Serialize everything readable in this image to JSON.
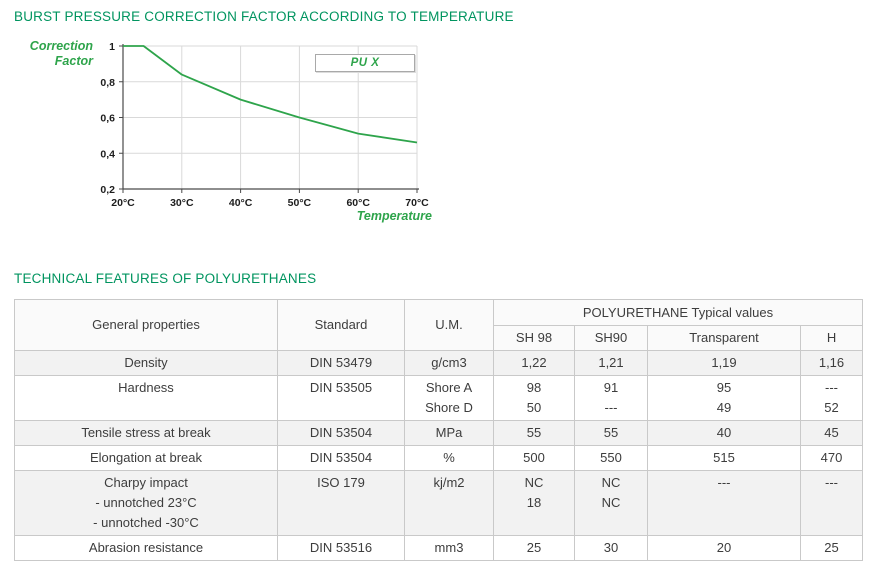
{
  "titles": {
    "chart_section": "BURST PRESSURE CORRECTION FACTOR ACCORDING TO TEMPERATURE",
    "table_section": "TECHNICAL FEATURES OF POLYURETHANES"
  },
  "colors": {
    "title_green": "#00945f",
    "chart_green": "#2ea44b",
    "grid": "#d9d9d9",
    "axis": "#4a4a4a",
    "table_border": "#c9c9c9",
    "table_text": "#3d3d3d",
    "row_shade": "#f2f2f2"
  },
  "chart_data": {
    "type": "line",
    "title": "",
    "ylabel": "Correction Factor",
    "xlabel": "Temperature",
    "legend_label": "PU X",
    "legend_position": "top-right",
    "grid": true,
    "xlim": [
      20,
      70
    ],
    "ylim": [
      0.2,
      1.0
    ],
    "x_ticks": [
      {
        "label": "20°C",
        "value": 20
      },
      {
        "label": "30°C",
        "value": 30
      },
      {
        "label": "40°C",
        "value": 40
      },
      {
        "label": "50°C",
        "value": 50
      },
      {
        "label": "60°C",
        "value": 60
      },
      {
        "label": "70°C",
        "value": 70
      }
    ],
    "y_ticks": [
      {
        "label": "1",
        "value": 1.0
      },
      {
        "label": "0,8",
        "value": 0.8
      },
      {
        "label": "0,6",
        "value": 0.6
      },
      {
        "label": "0,4",
        "value": 0.4
      },
      {
        "label": "0,2",
        "value": 0.2
      }
    ],
    "series": [
      {
        "name": "PU X",
        "points": [
          [
            20,
            1.0
          ],
          [
            23.5,
            1.0
          ],
          [
            30,
            0.84
          ],
          [
            40,
            0.7
          ],
          [
            50,
            0.6
          ],
          [
            60,
            0.51
          ],
          [
            70,
            0.46
          ]
        ]
      }
    ]
  },
  "table": {
    "columns": [
      "General properties",
      "Standard",
      "U.M."
    ],
    "group_header": "POLYURETHANE Typical values",
    "subcolumns": [
      "SH 98",
      "SH90",
      "Transparent",
      "H"
    ],
    "rows": [
      {
        "cells": [
          [
            "Density"
          ],
          [
            "DIN 53479"
          ],
          [
            "g/cm3"
          ],
          [
            "1,22"
          ],
          [
            "1,21"
          ],
          [
            "1,19"
          ],
          [
            "1,16"
          ]
        ]
      },
      {
        "cells": [
          [
            "Hardness"
          ],
          [
            "DIN 53505"
          ],
          [
            "Shore A",
            "Shore D"
          ],
          [
            "98",
            "50"
          ],
          [
            "91",
            "---"
          ],
          [
            "95",
            "49"
          ],
          [
            "---",
            "52"
          ]
        ]
      },
      {
        "cells": [
          [
            "Tensile stress at break"
          ],
          [
            "DIN 53504"
          ],
          [
            "MPa"
          ],
          [
            "55"
          ],
          [
            "55"
          ],
          [
            "40"
          ],
          [
            "45"
          ]
        ]
      },
      {
        "cells": [
          [
            "Elongation at break"
          ],
          [
            "DIN 53504"
          ],
          [
            "%"
          ],
          [
            "500"
          ],
          [
            "550"
          ],
          [
            "515"
          ],
          [
            "470"
          ]
        ]
      },
      {
        "cells": [
          [
            "Charpy impact",
            "- unnotched 23°C",
            "- unnotched -30°C"
          ],
          [
            "ISO 179"
          ],
          [
            "kj/m2"
          ],
          [
            "NC",
            "18"
          ],
          [
            "NC",
            "NC"
          ],
          [
            "---"
          ],
          [
            "---"
          ]
        ]
      },
      {
        "cells": [
          [
            "Abrasion resistance"
          ],
          [
            "DIN 53516"
          ],
          [
            "mm3"
          ],
          [
            "25"
          ],
          [
            "30"
          ],
          [
            "20"
          ],
          [
            "25"
          ]
        ]
      }
    ]
  }
}
